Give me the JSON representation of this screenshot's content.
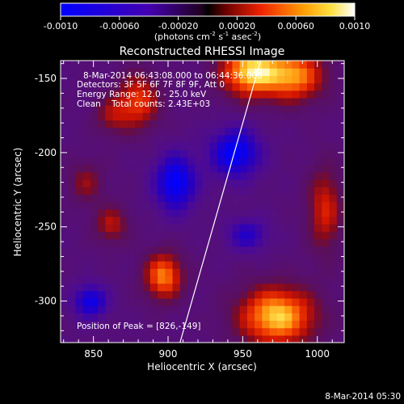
{
  "chart_data": {
    "type": "heatmap",
    "title": "Reconstructed RHESSI Image",
    "xlabel": "Heliocentric X (arcsec)",
    "ylabel": "Heliocentric Y (arcsec)",
    "xlim": [
      828,
      1018
    ],
    "ylim": [
      -328,
      -138
    ],
    "x_ticks": [
      850,
      900,
      950,
      1000
    ],
    "y_ticks": [
      -150,
      -200,
      -250,
      -300
    ],
    "colorbar": {
      "min": -0.001,
      "max": 0.001,
      "tick_labels": [
        "-0.0010",
        "-0.00060",
        "-0.00020",
        "0.00020",
        "0.00060",
        "0.0010"
      ],
      "tick_values": [
        -0.001,
        -0.0006,
        -0.0002,
        0.0002,
        0.0006,
        0.001
      ],
      "unit_label": "(photons cm",
      "unit_sup1": "-2",
      "unit_mid": " s",
      "unit_sup2": "-1",
      "unit_mid2": " asec",
      "unit_sup3": "-2",
      "unit_end": ")"
    },
    "annotations": {
      "time_range": "8-Mar-2014 06:43:08.000 to 06:44:36.000",
      "detectors": "Detectors: 3F 5F 6F 7F 8F 9F, Att 0",
      "energy": "Energy Range: 12.0 - 25.0 keV",
      "clean": "Clean    Total counts: 2.43E+03",
      "peak": "Position of Peak = [826,-149]"
    },
    "limb_line": {
      "x": [
        908,
        962
      ],
      "y": [
        -328,
        -138
      ]
    },
    "blobs": [
      {
        "x": 955,
        "y": -145,
        "sx": 14,
        "sy": 12,
        "amp": 0.0011
      },
      {
        "x": 985,
        "y": -148,
        "sx": 14,
        "sy": 12,
        "amp": 0.0009
      },
      {
        "x": 880,
        "y": -165,
        "sx": 10,
        "sy": 13,
        "amp": 0.0007
      },
      {
        "x": 897,
        "y": -283,
        "sx": 9,
        "sy": 11,
        "amp": 0.0009
      },
      {
        "x": 973,
        "y": -310,
        "sx": 18,
        "sy": 14,
        "amp": 0.0011
      },
      {
        "x": 1005,
        "y": -238,
        "sx": 8,
        "sy": 20,
        "amp": 0.0006
      },
      {
        "x": 862,
        "y": -175,
        "sx": 8,
        "sy": 9,
        "amp": 0.0004
      },
      {
        "x": 845,
        "y": -220,
        "sx": 8,
        "sy": 10,
        "amp": 0.0004
      },
      {
        "x": 862,
        "y": -248,
        "sx": 8,
        "sy": 9,
        "amp": 0.0005
      },
      {
        "x": 905,
        "y": -220,
        "sx": 10,
        "sy": 14,
        "amp": -0.0008
      },
      {
        "x": 945,
        "y": -200,
        "sx": 12,
        "sy": 12,
        "amp": -0.0008
      },
      {
        "x": 848,
        "y": -300,
        "sx": 8,
        "sy": 8,
        "amp": -0.0007
      },
      {
        "x": 953,
        "y": -255,
        "sx": 10,
        "sy": 8,
        "amp": -0.0005
      }
    ]
  },
  "footer": {
    "timestamp": "8-Mar-2014 05:30"
  }
}
